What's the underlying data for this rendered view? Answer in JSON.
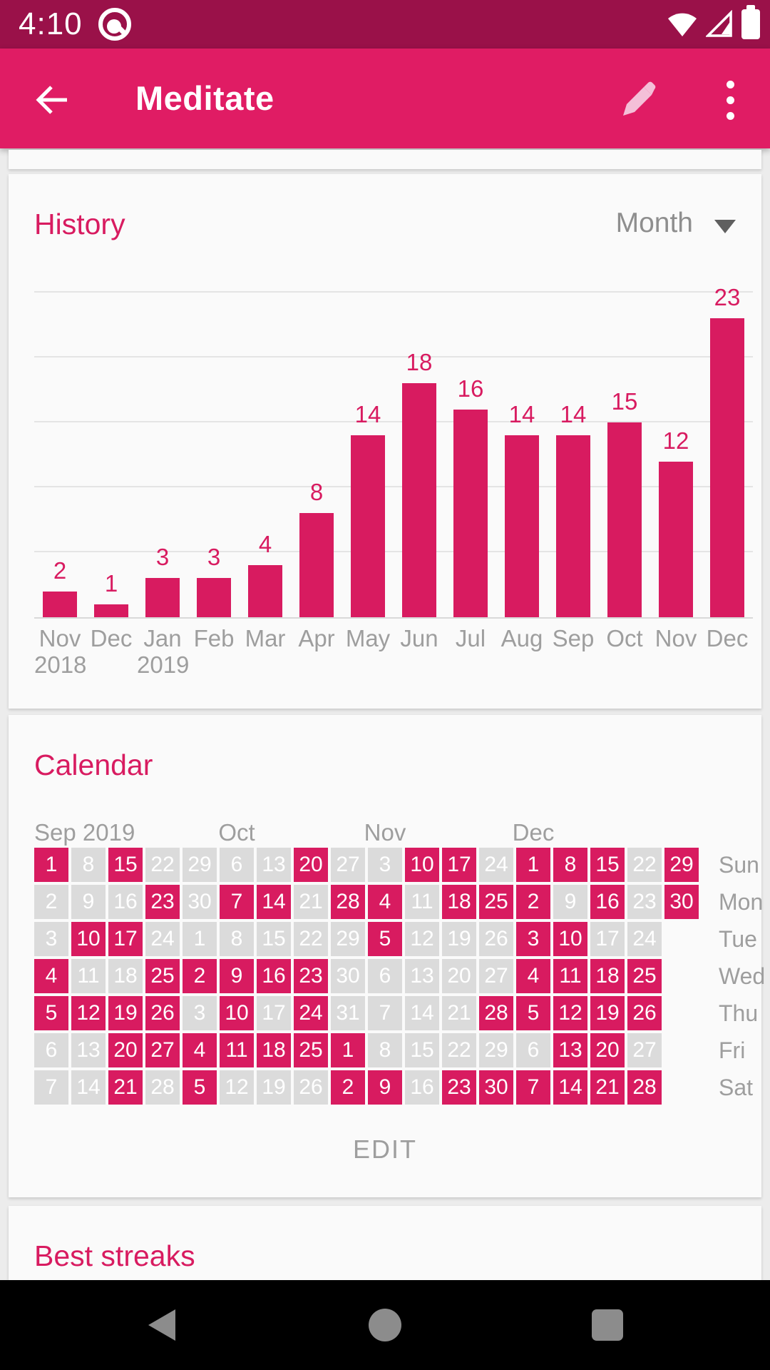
{
  "colors": {
    "primary": "#E01C64",
    "primary_dark": "#9A1149",
    "accent": "#D81B60",
    "bar": "#D81B60",
    "calendar_cell_on": "#D81B60",
    "calendar_cell_off": "#DBDBDB",
    "muted_text": "#9E9E9E",
    "card_bg": "#FAFAFA",
    "page_bg": "#ECECEC",
    "nav_bg": "#000000",
    "nav_icon": "#8C8C8C"
  },
  "status_bar": {
    "time": "4:10",
    "icons": [
      "android-q-badge-icon",
      "wifi-icon",
      "cell-signal-icon",
      "battery-icon"
    ]
  },
  "app_bar": {
    "title": "Meditate",
    "back_icon": "arrow-left-icon",
    "edit_icon": "pencil-icon",
    "overflow_icon": "more-vert-icon"
  },
  "history": {
    "title": "History",
    "range_selector": {
      "value": "Month",
      "icon": "dropdown-caret-icon"
    }
  },
  "chart_data": {
    "type": "bar",
    "title": "History (check-ins per month)",
    "categories": [
      "Nov",
      "Dec",
      "Jan",
      "Feb",
      "Mar",
      "Apr",
      "May",
      "Jun",
      "Jul",
      "Aug",
      "Sep",
      "Oct",
      "Nov",
      "Dec"
    ],
    "year_labels": [
      {
        "index": 0,
        "year": "2018"
      },
      {
        "index": 2,
        "year": "2019"
      }
    ],
    "values": [
      2,
      1,
      3,
      3,
      4,
      8,
      14,
      18,
      16,
      14,
      14,
      15,
      12,
      23
    ],
    "xlabel": "",
    "ylabel": "",
    "ylim": [
      0,
      25
    ],
    "grid_step": 5,
    "grid": "horizontal",
    "value_labels_shown": true,
    "legend": "none",
    "bar_color": "#D81B60"
  },
  "calendar": {
    "title": "Calendar",
    "month_labels": [
      {
        "label": "Sep 2019",
        "col": 0,
        "align": "left"
      },
      {
        "label": "Oct",
        "col": 5,
        "align": "center"
      },
      {
        "label": "Nov",
        "col": 9,
        "align": "center"
      },
      {
        "label": "Dec",
        "col": 13,
        "align": "center"
      }
    ],
    "columns": 18,
    "rows": [
      {
        "weekday": "Sun",
        "cells": [
          [
            1,
            1
          ],
          [
            8,
            0
          ],
          [
            15,
            1
          ],
          [
            22,
            0
          ],
          [
            29,
            0
          ],
          [
            6,
            0
          ],
          [
            13,
            0
          ],
          [
            20,
            1
          ],
          [
            27,
            0
          ],
          [
            3,
            0
          ],
          [
            10,
            1
          ],
          [
            17,
            1
          ],
          [
            24,
            0
          ],
          [
            1,
            1
          ],
          [
            8,
            1
          ],
          [
            15,
            1
          ],
          [
            22,
            0
          ],
          [
            29,
            1
          ]
        ]
      },
      {
        "weekday": "Mon",
        "cells": [
          [
            2,
            0
          ],
          [
            9,
            0
          ],
          [
            16,
            0
          ],
          [
            23,
            1
          ],
          [
            30,
            0
          ],
          [
            7,
            1
          ],
          [
            14,
            1
          ],
          [
            21,
            0
          ],
          [
            28,
            1
          ],
          [
            4,
            1
          ],
          [
            11,
            0
          ],
          [
            18,
            1
          ],
          [
            25,
            1
          ],
          [
            2,
            1
          ],
          [
            9,
            0
          ],
          [
            16,
            1
          ],
          [
            23,
            0
          ],
          [
            30,
            1
          ]
        ]
      },
      {
        "weekday": "Tue",
        "cells": [
          [
            3,
            0
          ],
          [
            10,
            1
          ],
          [
            17,
            1
          ],
          [
            24,
            0
          ],
          [
            1,
            0
          ],
          [
            8,
            0
          ],
          [
            15,
            0
          ],
          [
            22,
            0
          ],
          [
            29,
            0
          ],
          [
            5,
            1
          ],
          [
            12,
            0
          ],
          [
            19,
            0
          ],
          [
            26,
            0
          ],
          [
            3,
            1
          ],
          [
            10,
            1
          ],
          [
            17,
            0
          ],
          [
            24,
            0
          ]
        ]
      },
      {
        "weekday": "Wed",
        "cells": [
          [
            4,
            1
          ],
          [
            11,
            0
          ],
          [
            18,
            0
          ],
          [
            25,
            1
          ],
          [
            2,
            1
          ],
          [
            9,
            1
          ],
          [
            16,
            1
          ],
          [
            23,
            1
          ],
          [
            30,
            0
          ],
          [
            6,
            0
          ],
          [
            13,
            0
          ],
          [
            20,
            0
          ],
          [
            27,
            0
          ],
          [
            4,
            1
          ],
          [
            11,
            1
          ],
          [
            18,
            1
          ],
          [
            25,
            1
          ]
        ]
      },
      {
        "weekday": "Thu",
        "cells": [
          [
            5,
            1
          ],
          [
            12,
            1
          ],
          [
            19,
            1
          ],
          [
            26,
            1
          ],
          [
            3,
            0
          ],
          [
            10,
            1
          ],
          [
            17,
            0
          ],
          [
            24,
            1
          ],
          [
            31,
            0
          ],
          [
            7,
            0
          ],
          [
            14,
            0
          ],
          [
            21,
            0
          ],
          [
            28,
            1
          ],
          [
            5,
            1
          ],
          [
            12,
            1
          ],
          [
            19,
            1
          ],
          [
            26,
            1
          ]
        ]
      },
      {
        "weekday": "Fri",
        "cells": [
          [
            6,
            0
          ],
          [
            13,
            0
          ],
          [
            20,
            1
          ],
          [
            27,
            1
          ],
          [
            4,
            1
          ],
          [
            11,
            1
          ],
          [
            18,
            1
          ],
          [
            25,
            1
          ],
          [
            1,
            1
          ],
          [
            8,
            0
          ],
          [
            15,
            0
          ],
          [
            22,
            0
          ],
          [
            29,
            0
          ],
          [
            6,
            0
          ],
          [
            13,
            1
          ],
          [
            20,
            1
          ],
          [
            27,
            0
          ]
        ]
      },
      {
        "weekday": "Sat",
        "cells": [
          [
            7,
            0
          ],
          [
            14,
            0
          ],
          [
            21,
            1
          ],
          [
            28,
            0
          ],
          [
            5,
            1
          ],
          [
            12,
            0
          ],
          [
            19,
            0
          ],
          [
            26,
            0
          ],
          [
            2,
            1
          ],
          [
            9,
            1
          ],
          [
            16,
            0
          ],
          [
            23,
            1
          ],
          [
            30,
            1
          ],
          [
            7,
            1
          ],
          [
            14,
            1
          ],
          [
            21,
            1
          ],
          [
            28,
            1
          ]
        ]
      }
    ],
    "edit_label": "EDIT"
  },
  "best_streaks": {
    "title": "Best streaks"
  },
  "nav_bar": {
    "icons": [
      "nav-back-icon",
      "nav-home-icon",
      "nav-recents-icon"
    ]
  }
}
